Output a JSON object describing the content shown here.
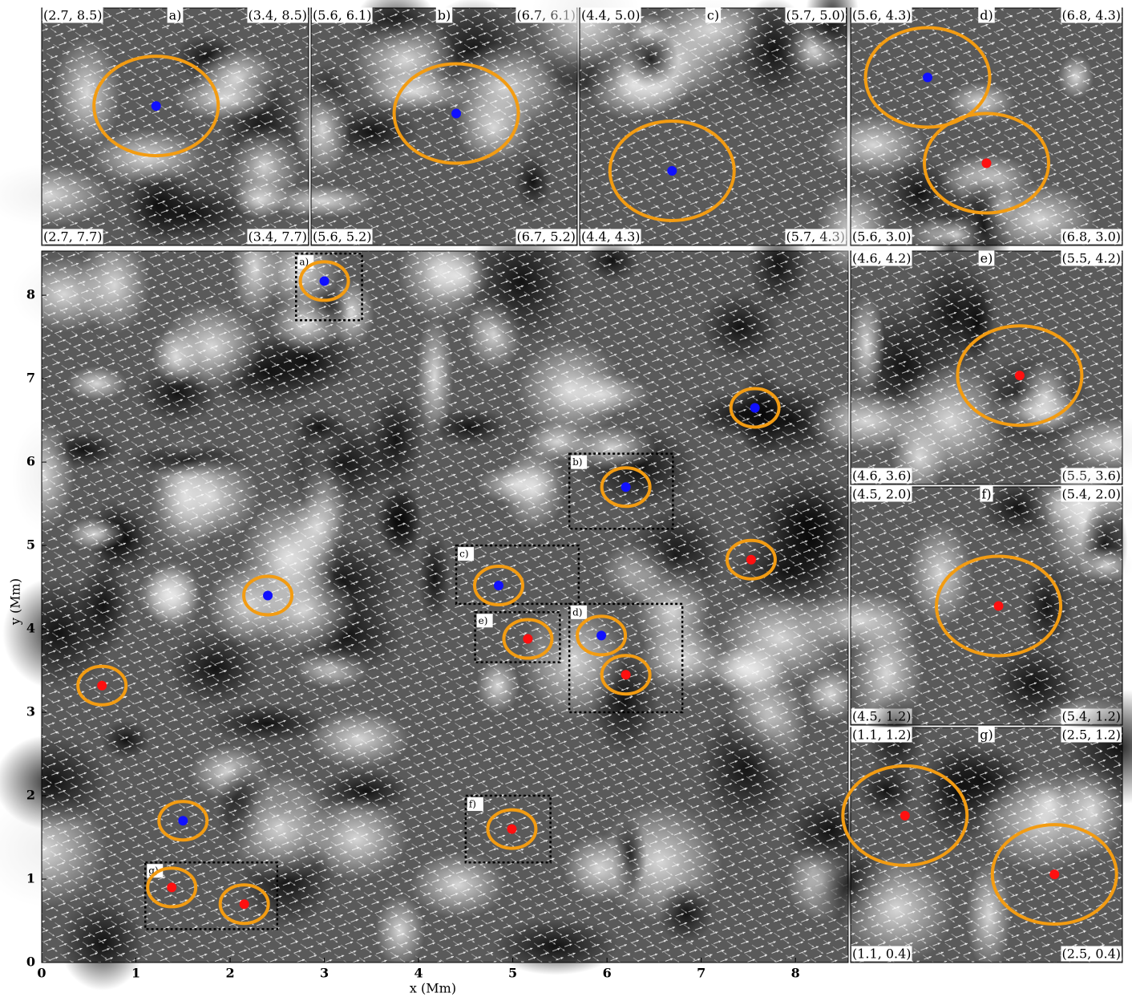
{
  "chart_data": {
    "type": "scatter",
    "x_label": "x (Mm)",
    "y_label": "y (Mm)",
    "xlim": [
      0,
      8.56
    ],
    "ylim": [
      0,
      8.53
    ],
    "xticks": [
      0,
      1,
      2,
      3,
      4,
      5,
      6,
      7,
      8
    ],
    "yticks": [
      0,
      1,
      2,
      3,
      4,
      5,
      6,
      7,
      8
    ],
    "series": [
      {
        "color": "#1010ff",
        "x": [
          3.0,
          7.57,
          6.2,
          4.85,
          2.4,
          5.94,
          1.5
        ],
        "y": [
          8.17,
          6.65,
          5.7,
          4.52,
          4.4,
          3.92,
          1.7
        ]
      },
      {
        "color": "#ff1010",
        "x": [
          7.53,
          5.16,
          6.2,
          0.64,
          4.99,
          1.38,
          2.15
        ],
        "y": [
          4.83,
          3.88,
          3.45,
          3.32,
          1.6,
          0.9,
          0.7
        ]
      }
    ],
    "insets": [
      {
        "label": "a)",
        "box": [
          2.7,
          3.4,
          7.7,
          8.5
        ],
        "corners": [
          "(2.7, 8.5)",
          "(3.4, 8.5)",
          "(2.7, 7.7)",
          "(3.4, 7.7)"
        ]
      },
      {
        "label": "b)",
        "box": [
          5.6,
          6.7,
          5.2,
          6.1
        ],
        "corners": [
          "(5.6, 6.1)",
          "(6.7, 6.1)",
          "(5.6, 5.2)",
          "(6.7, 5.2)"
        ]
      },
      {
        "label": "c)",
        "box": [
          4.4,
          5.7,
          4.3,
          5.0
        ],
        "corners": [
          "(4.4, 5.0)",
          "(5.7, 5.0)",
          "(4.4, 4.3)",
          "(5.7, 4.3)"
        ]
      },
      {
        "label": "d)",
        "box": [
          5.6,
          6.8,
          3.0,
          4.3
        ],
        "corners": [
          "(5.6, 4.3)",
          "(6.8, 4.3)",
          "(5.6, 3.0)",
          "(6.8, 3.0)"
        ]
      },
      {
        "label": "e)",
        "box": [
          4.6,
          5.5,
          3.6,
          4.2
        ],
        "corners": [
          "(4.6, 4.2)",
          "(5.5, 4.2)",
          "(4.6, 3.6)",
          "(5.5, 3.6)"
        ]
      },
      {
        "label": "f)",
        "box": [
          4.5,
          5.4,
          1.2,
          2.0
        ],
        "corners": [
          "(4.5, 2.0)",
          "(5.4, 2.0)",
          "(4.5, 1.2)",
          "(5.4, 1.2)"
        ]
      },
      {
        "label": "g)",
        "box": [
          1.1,
          2.5,
          0.4,
          1.2
        ],
        "corners": [
          "(1.1, 1.2)",
          "(2.5, 1.2)",
          "(1.1, 0.4)",
          "(2.5, 0.4)"
        ]
      }
    ]
  }
}
